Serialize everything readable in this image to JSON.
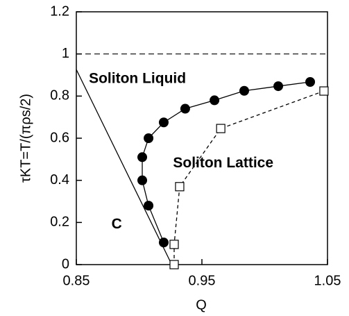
{
  "chart_data": {
    "type": "line",
    "xlabel": "Q",
    "ylabel": "τKT=T/(πρs/2)",
    "xlim": [
      0.85,
      1.05
    ],
    "xticks": [
      0.85,
      0.95,
      1.05
    ],
    "ylim": [
      0,
      1.2
    ],
    "yticks": [
      0,
      0.2,
      0.4,
      0.6,
      0.8,
      1,
      1.2
    ],
    "reference_line": 1,
    "annotations": [
      {
        "text": "Soliton Liquid",
        "x": 0.86,
        "y": 0.88
      },
      {
        "text": "Soliton Lattice",
        "x": 0.927,
        "y": 0.48
      },
      {
        "text": "C",
        "x": 0.878,
        "y": 0.19
      }
    ],
    "series": [
      {
        "style": "solid",
        "marker": "none",
        "color": "#000",
        "x": [
          0.85,
          0.926
        ],
        "values": [
          0.926,
          0
        ]
      },
      {
        "style": "solid",
        "marker": "filled-circle",
        "color": "#000",
        "x": [
          0.9196,
          0.9075,
          0.9025,
          0.9025,
          0.9075,
          0.9196,
          0.9367,
          0.96,
          0.9837,
          1.0108,
          1.0362
        ],
        "values": [
          0.105,
          0.28,
          0.4,
          0.51,
          0.6,
          0.675,
          0.74,
          0.78,
          0.825,
          0.847,
          0.867
        ]
      },
      {
        "style": "dashed",
        "marker": "open-square",
        "color": "#000",
        "x": [
          0.9279,
          0.9279,
          0.9323,
          0.965,
          1.0472
        ],
        "values": [
          0,
          0.096,
          0.37,
          0.646,
          0.824
        ]
      }
    ]
  }
}
